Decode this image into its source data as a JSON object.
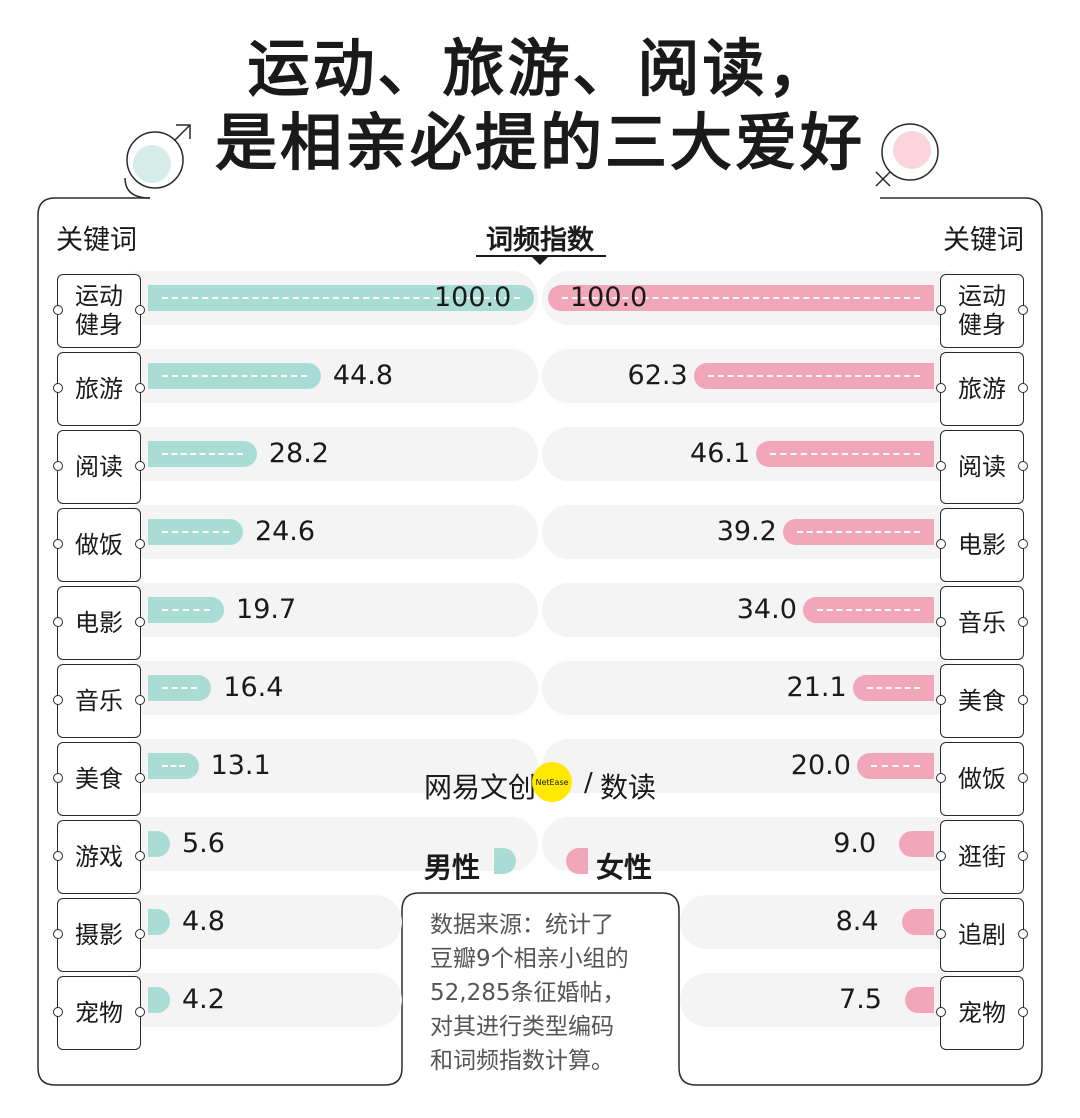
{
  "title": {
    "line1": "运动、旅游、阅读，",
    "line2": "是相亲必提的三大爱好"
  },
  "headers": {
    "left": "关键词",
    "center": "词频指数",
    "right": "关键词"
  },
  "legend": {
    "male": "男性",
    "female": "女性"
  },
  "brand": {
    "name": "网易文创",
    "badge": "NetEase",
    "slash": "/",
    "sub": "数读"
  },
  "source_lines": [
    "数据来源：统计了",
    "豆瓣9个相亲小组的",
    "52,285条征婚帖，",
    "对其进行类型编码",
    "和词频指数计算。"
  ],
  "colors": {
    "male": "#a9dcd4",
    "female": "#f2a6ba",
    "track": "#f4f4f4",
    "male_symbol": "#d5ece9",
    "female_symbol": "#fbd4de"
  },
  "chart_data": {
    "type": "bar",
    "title": "运动、旅游、阅读，是相亲必提的三大爱好",
    "xlabel": "词频指数",
    "xlim": [
      0,
      100
    ],
    "series": [
      {
        "name": "男性",
        "categories": [
          "运动健身",
          "旅游",
          "阅读",
          "做饭",
          "电影",
          "音乐",
          "美食",
          "游戏",
          "摄影",
          "宠物"
        ],
        "values": [
          100.0,
          44.8,
          28.2,
          24.6,
          19.7,
          16.4,
          13.1,
          5.6,
          4.8,
          4.2
        ]
      },
      {
        "name": "女性",
        "categories": [
          "运动健身",
          "旅游",
          "阅读",
          "电影",
          "音乐",
          "美食",
          "做饭",
          "逛街",
          "追剧",
          "宠物"
        ],
        "values": [
          100.0,
          62.3,
          46.1,
          39.2,
          34.0,
          21.1,
          20.0,
          9.0,
          8.4,
          7.5
        ]
      }
    ]
  }
}
